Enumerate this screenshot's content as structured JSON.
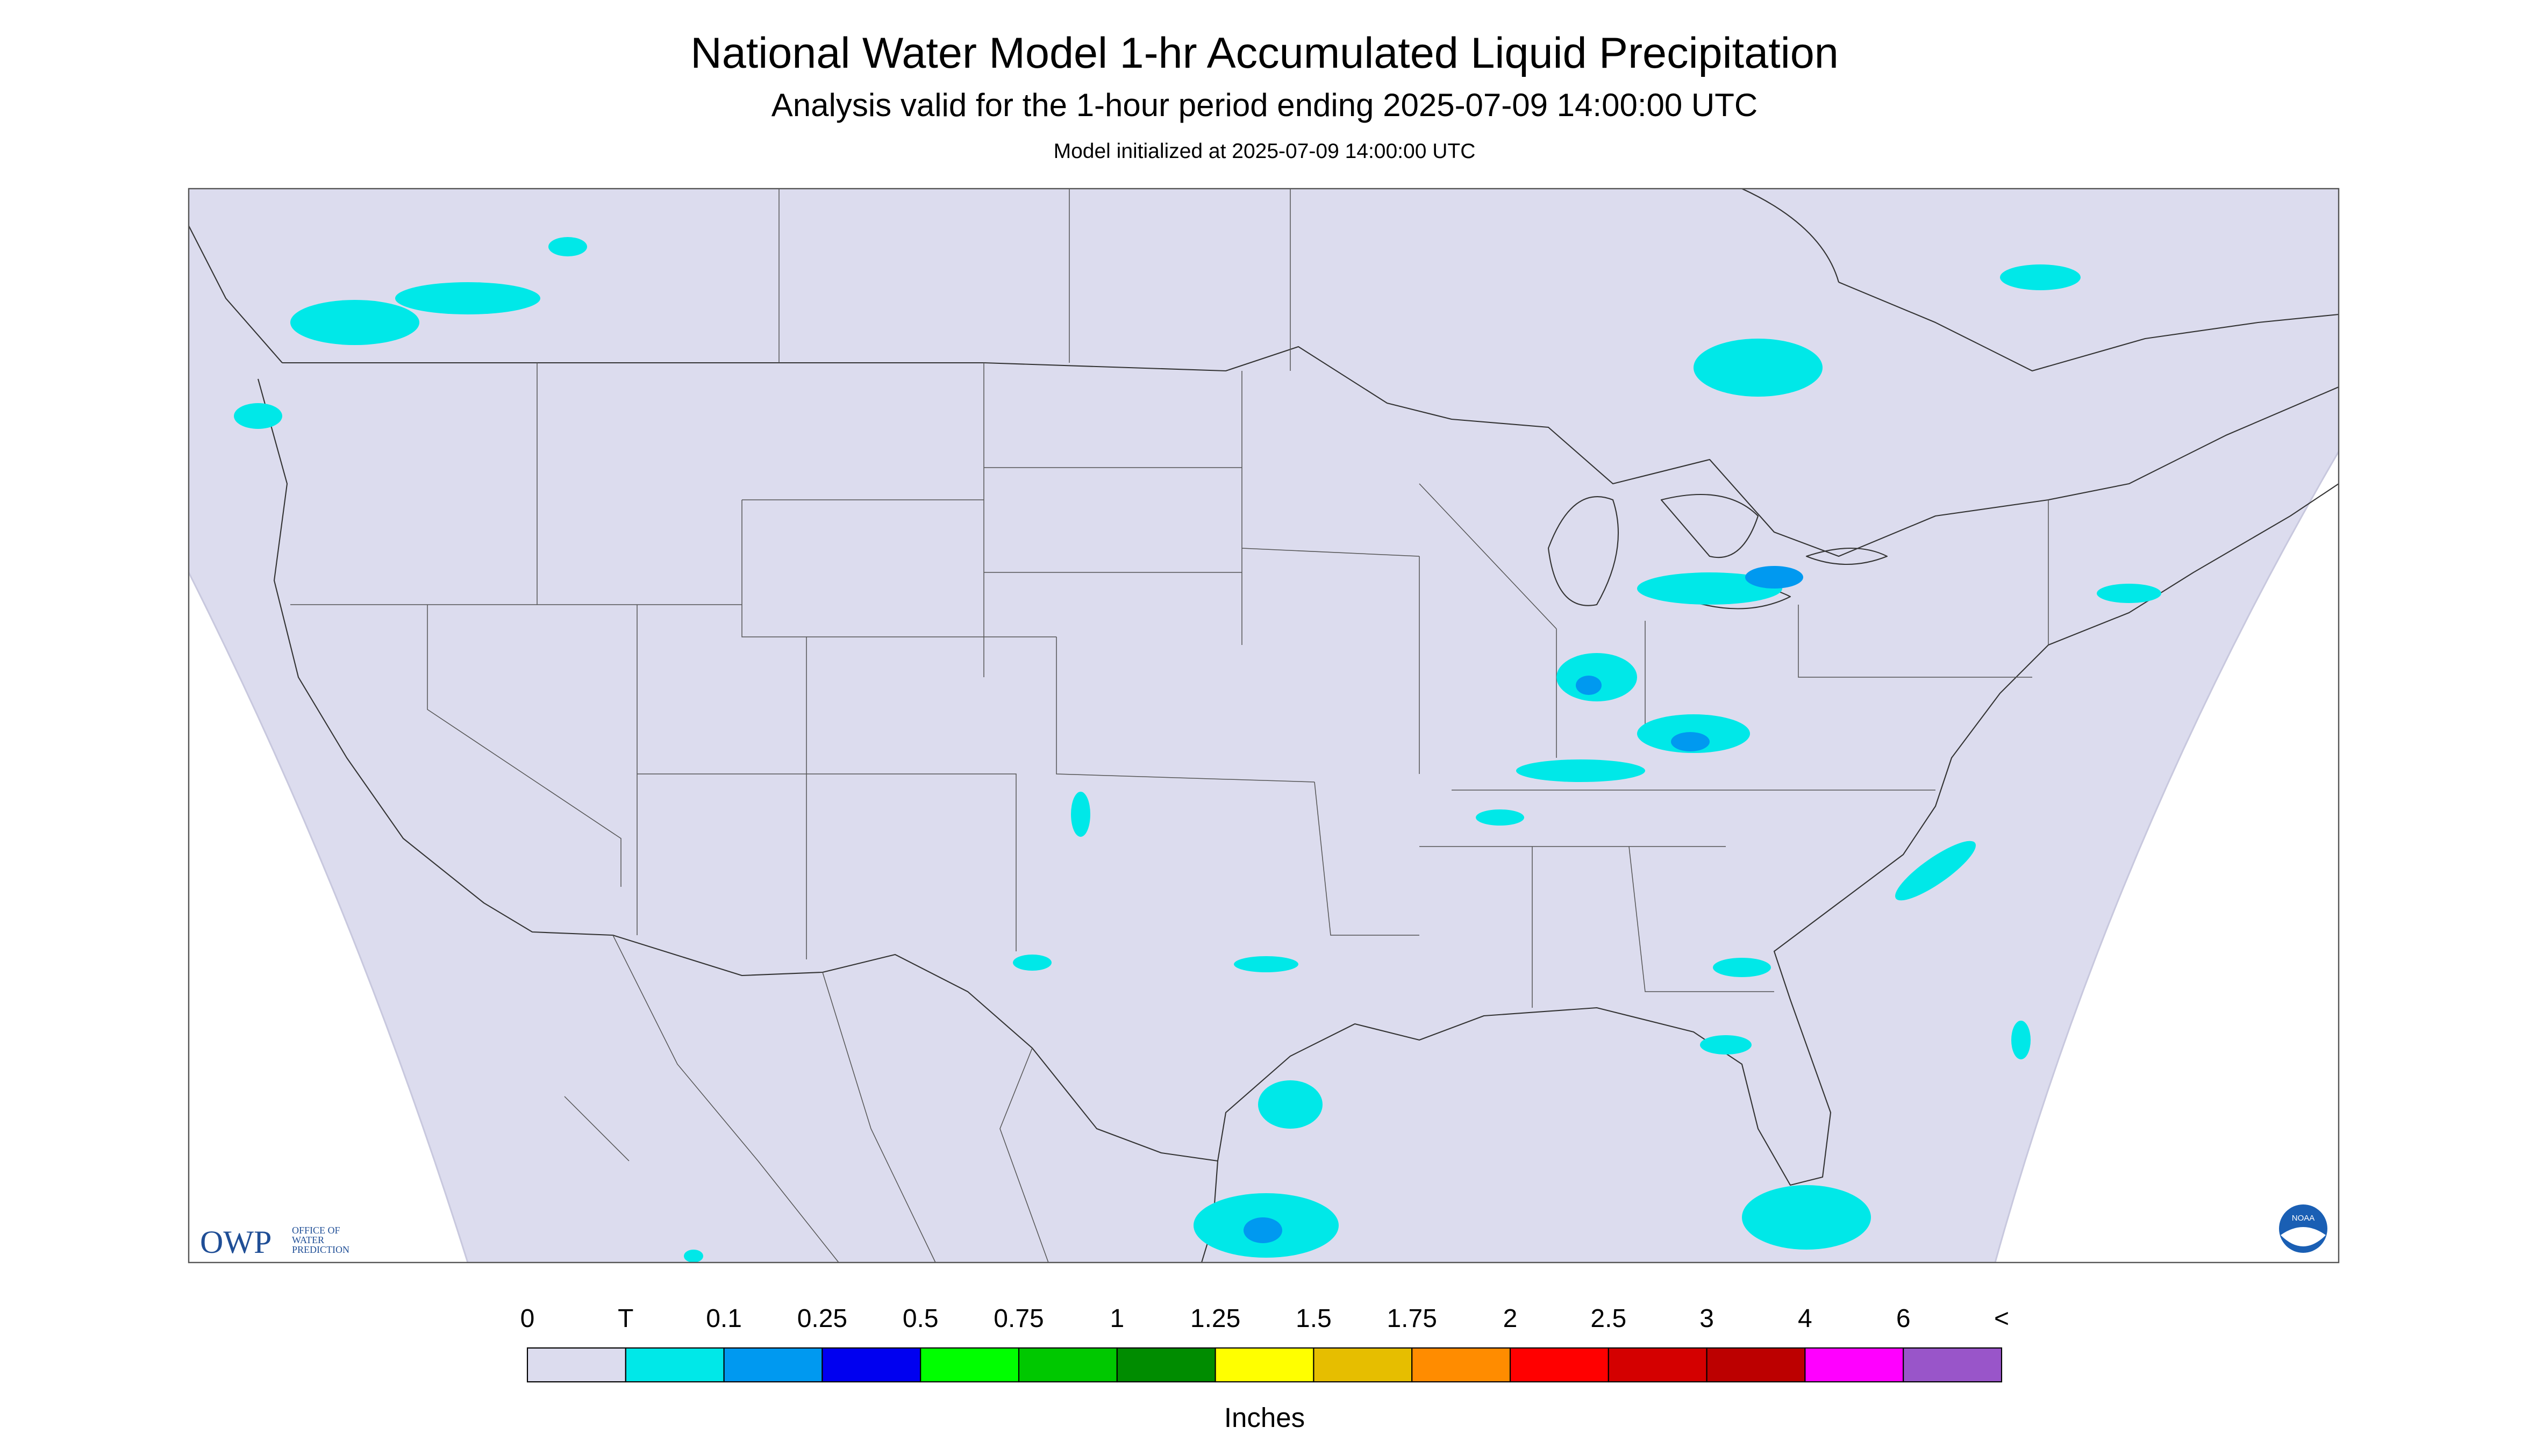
{
  "header": {
    "title": "National Water Model 1-hr Accumulated Liquid Precipitation",
    "subtitle": "Analysis valid for the 1-hour period ending 2025-07-09 14:00:00 UTC",
    "init_note": "Model initialized at 2025-07-09 14:00:00 UTC"
  },
  "logo": {
    "name": "OWP",
    "line1": "OFFICE OF",
    "line2": "WATER",
    "line3": "PREDICTION",
    "noaa": "NOAA"
  },
  "legend": {
    "labels": [
      "0",
      "T",
      "0.1",
      "0.25",
      "0.5",
      "0.75",
      "1",
      "1.25",
      "1.5",
      "1.75",
      "2",
      "2.5",
      "3",
      "4",
      "6",
      "<"
    ],
    "colors": [
      "#dcdcee",
      "#00e8e8",
      "#0099f0",
      "#0000f0",
      "#00ff00",
      "#00c800",
      "#008c00",
      "#ffff00",
      "#e6be00",
      "#ff8c00",
      "#ff0000",
      "#d40000",
      "#bc0000",
      "#ff00ff",
      "#9955c9"
    ],
    "units": "Inches"
  }
}
